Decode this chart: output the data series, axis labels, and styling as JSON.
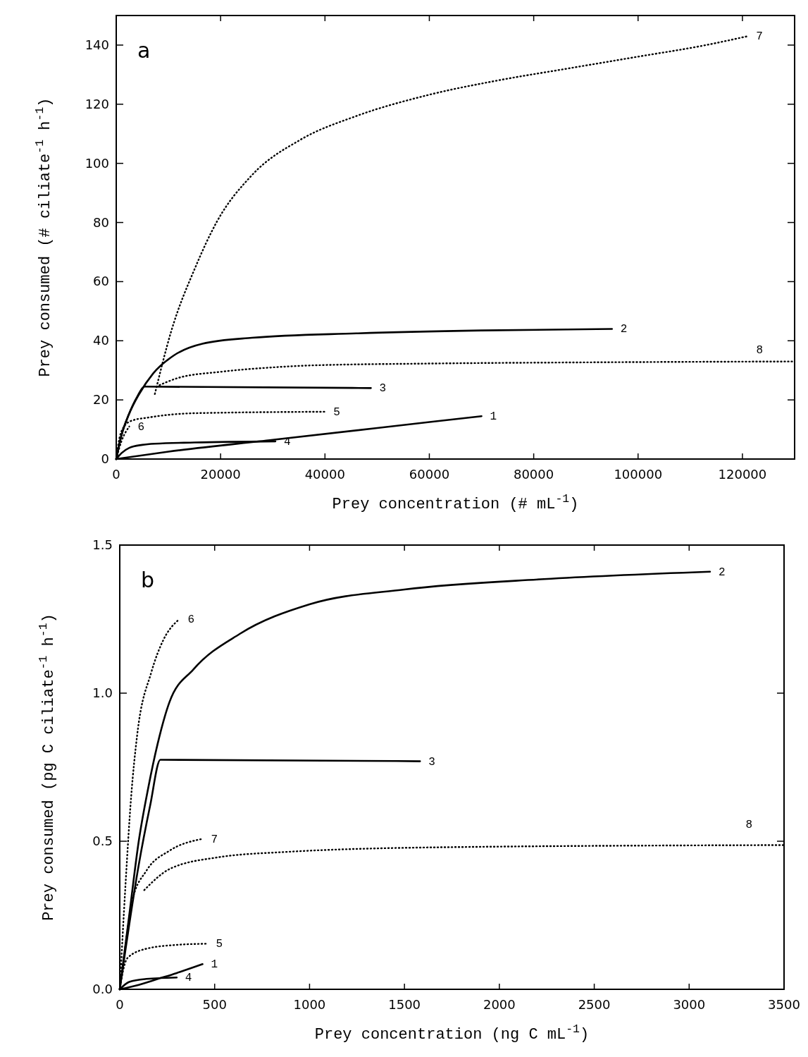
{
  "chart_data": [
    {
      "type": "line",
      "title": "a",
      "xlabel": "Prey concentration (# mL$^{-1}$)",
      "ylabel": "Prey consumed (# ciliate$^{-1}$ h$^{-1}$)",
      "xlim": [
        0,
        130000
      ],
      "ylim": [
        0,
        150
      ],
      "xticks": [
        0,
        20000,
        40000,
        60000,
        80000,
        100000,
        120000
      ],
      "yticks": [
        0,
        20,
        40,
        60,
        80,
        100,
        120,
        140
      ],
      "grid": false,
      "marker": "none",
      "series": [
        {
          "name": "1",
          "color": "#000000",
          "line_style": "solid",
          "x": [
            0,
            10000,
            30000,
            50000,
            70000
          ],
          "values": [
            0,
            2.5,
            6.5,
            10.5,
            14.5
          ]
        },
        {
          "name": "2",
          "color": "#000000",
          "line_style": "solid",
          "x": [
            0,
            1000,
            2400,
            4400,
            7100,
            11000,
            16500,
            26000,
            46000,
            70000,
            95000
          ],
          "values": [
            0,
            8,
            15,
            22,
            29,
            35,
            39,
            41,
            42.5,
            43.5,
            44
          ]
        },
        {
          "name": "3",
          "color": "#000000",
          "line_style": "solid",
          "x": [
            0,
            1000,
            2400,
            4000,
            5400,
            48800
          ],
          "values": [
            0,
            8,
            15,
            21,
            24.5,
            24
          ]
        },
        {
          "name": "4",
          "color": "#000000",
          "line_style": "solid",
          "x": [
            0,
            1000,
            2500,
            5000,
            7400,
            15000,
            30500
          ],
          "values": [
            0,
            2,
            3.8,
            4.8,
            5.2,
            5.6,
            6
          ]
        },
        {
          "name": "5",
          "color": "#000000",
          "line_style": "dotted",
          "x": [
            0,
            500,
            1500,
            3000,
            6000,
            15000,
            40000
          ],
          "values": [
            0,
            6,
            11,
            13,
            14,
            15.5,
            16
          ]
        },
        {
          "name": "6",
          "color": "#000000",
          "line_style": "dotted",
          "x": [
            0,
            1000,
            2500
          ],
          "values": [
            0,
            6,
            11
          ]
        },
        {
          "name": "7",
          "color": "#000000",
          "line_style": "dotted",
          "x": [
            7400,
            10500,
            15200,
            19200,
            26000,
            35300,
            46000,
            59500,
            73000,
            86300,
            99700,
            113000,
            121000
          ],
          "values": [
            22,
            43,
            65,
            80,
            96,
            108,
            116,
            123,
            128,
            132,
            136,
            140,
            143
          ]
        },
        {
          "name": "8",
          "color": "#000000",
          "line_style": "dotted",
          "x": [
            8300,
            12000,
            20000,
            30000,
            38000,
            60000,
            90000,
            130000
          ],
          "values": [
            25,
            27.5,
            29.5,
            31,
            31.7,
            32.3,
            32.7,
            33
          ]
        }
      ]
    },
    {
      "type": "line",
      "title": "b",
      "xlabel": "Prey concentration (ng C mL$^{-1}$)",
      "ylabel": "Prey consumed (pg C ciliate$^{-1}$ h$^{-1}$)",
      "xlim": [
        0,
        3500
      ],
      "ylim": [
        0,
        1.5
      ],
      "xticks": [
        0,
        500,
        1000,
        1500,
        2000,
        2500,
        3000,
        3500
      ],
      "yticks": [
        {
          "value": 0,
          "label": "0.0"
        },
        0.5,
        {
          "value": 1,
          "label": "1.0"
        },
        1.5
      ],
      "grid": false,
      "marker": "none",
      "series": [
        {
          "name": "1",
          "color": "#000000",
          "line_style": "solid",
          "x": [
            0,
            100,
            200,
            300,
            436
          ],
          "values": [
            0,
            0.015,
            0.035,
            0.055,
            0.085
          ]
        },
        {
          "name": "2",
          "color": "#000000",
          "line_style": "solid",
          "x": [
            0,
            50,
            100,
            150,
            200,
            262,
            388,
            632,
            1000,
            1500,
            2235,
            3110
          ],
          "values": [
            0,
            0.25,
            0.5,
            0.68,
            0.83,
            0.97,
            1.08,
            1.2,
            1.3,
            1.35,
            1.385,
            1.41
          ]
        },
        {
          "name": "3",
          "color": "#000000",
          "line_style": "solid",
          "x": [
            0,
            100,
            160,
            214,
            1582
          ],
          "values": [
            0,
            0.42,
            0.62,
            0.775,
            0.77
          ]
        },
        {
          "name": "4",
          "color": "#000000",
          "line_style": "solid",
          "x": [
            0,
            50,
            140,
            300
          ],
          "values": [
            0,
            0.025,
            0.035,
            0.04
          ]
        },
        {
          "name": "5",
          "color": "#000000",
          "line_style": "dotted",
          "x": [
            0,
            20,
            41,
            140,
            300,
            462
          ],
          "values": [
            0,
            0.07,
            0.106,
            0.137,
            0.15,
            0.154
          ]
        },
        {
          "name": "6",
          "color": "#000000",
          "line_style": "dotted",
          "x": [
            0,
            30,
            60,
            92,
            166,
            230,
            314
          ],
          "values": [
            0,
            0.35,
            0.65,
            0.86,
            1.07,
            1.18,
            1.25
          ]
        },
        {
          "name": "7",
          "color": "#000000",
          "line_style": "dotted",
          "x": [
            0,
            30,
            66,
            140,
            262,
            436
          ],
          "values": [
            0,
            0.15,
            0.3,
            0.4,
            0.468,
            0.508
          ]
        },
        {
          "name": "8",
          "color": "#000000",
          "line_style": "dotted",
          "x": [
            129,
            262,
            510,
            880,
            1740,
            3500
          ],
          "values": [
            0.335,
            0.406,
            0.445,
            0.464,
            0.48,
            0.487
          ]
        }
      ]
    }
  ]
}
